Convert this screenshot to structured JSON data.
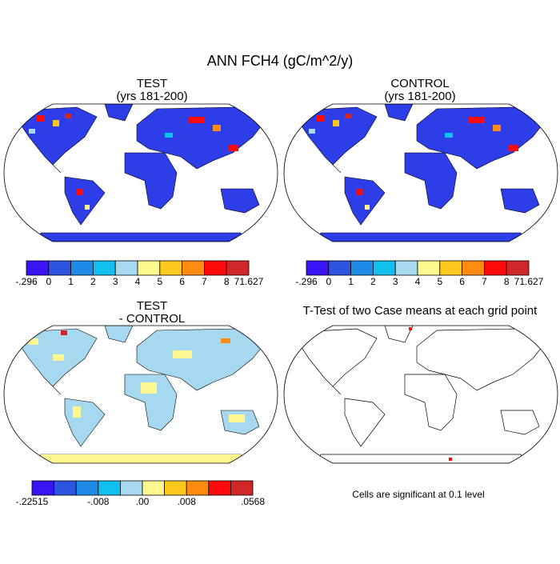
{
  "title": "ANN FCH4 (gC/m^2/y)",
  "panels": [
    {
      "title": [
        "TEST",
        "(yrs 181-200)"
      ]
    },
    {
      "title": [
        "CONTROL",
        "(yrs 181-200)"
      ]
    },
    {
      "title": [
        "TEST",
        "- CONTROL"
      ]
    },
    {
      "title": [
        "T-Test of two Case means at each grid point"
      ]
    }
  ],
  "colorbars": [
    {
      "colors": [
        "#3a14f5",
        "#2d55e0",
        "#1e8ae8",
        "#12c0f0",
        "#a6d8f0",
        "#fffa90",
        "#ffc81c",
        "#ff8c10",
        "#ff0a0a",
        "#d02828"
      ],
      "labels": [
        "-.296",
        "0",
        "1",
        "2",
        "3",
        "4",
        "5",
        "6",
        "7",
        "8",
        "71.627"
      ]
    },
    {
      "colors": [
        "#3a14f5",
        "#2d55e0",
        "#1e8ae8",
        "#12c0f0",
        "#a6d8f0",
        "#fffa90",
        "#ffc81c",
        "#ff8c10",
        "#ff0a0a",
        "#d02828"
      ],
      "labels": [
        "-.296",
        "0",
        "1",
        "2",
        "3",
        "4",
        "5",
        "6",
        "7",
        "8",
        "71.627"
      ]
    },
    {
      "colors": [
        "#3a14f5",
        "#2d55e0",
        "#1e8ae8",
        "#12c0f0",
        "#a6d8f0",
        "#fff890",
        "#ffc81c",
        "#ff8c10",
        "#ff0a0a",
        "#d02828"
      ],
      "labels": [
        "-.22515",
        null,
        null,
        "-.008",
        null,
        ".00",
        null,
        ".008",
        null,
        null,
        ".0568"
      ]
    }
  ],
  "note": "Cells are significant at 0.1 level"
}
